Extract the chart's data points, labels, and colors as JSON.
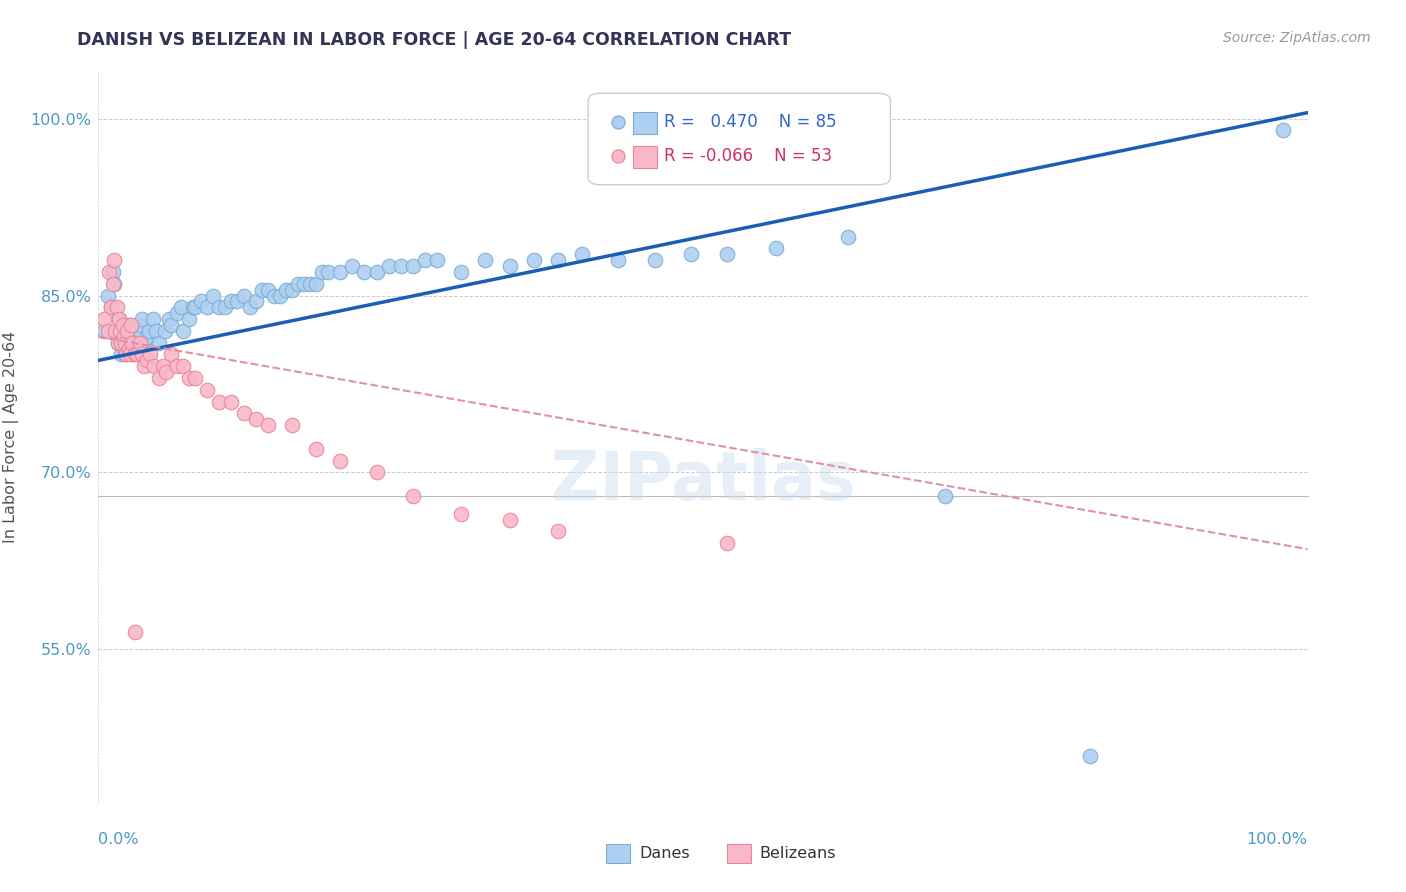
{
  "title": "DANISH VS BELIZEAN IN LABOR FORCE | AGE 20-64 CORRELATION CHART",
  "source": "Source: ZipAtlas.com",
  "ylabel": "In Labor Force | Age 20-64",
  "x_range": [
    0.0,
    1.0
  ],
  "y_range": [
    0.42,
    1.04
  ],
  "R_danes": 0.47,
  "N_danes": 85,
  "R_belizeans": -0.066,
  "N_belizeans": 53,
  "danes_color": "#aecff0",
  "danes_edge_color": "#7aadd4",
  "belizeans_color": "#f9b8c8",
  "belizeans_edge_color": "#e8849a",
  "trend_danes_color": "#1a5fb4",
  "trend_belizeans_color": "#e090a8",
  "watermark": "ZIPatlas",
  "y_ticks": [
    0.55,
    0.7,
    0.85,
    1.0
  ],
  "y_tick_labels": [
    "55.0%",
    "70.0%",
    "85.0%",
    "100.0%"
  ],
  "danes_trend": [
    0.795,
    1.005
  ],
  "belizeans_trend": [
    0.815,
    0.635
  ],
  "danes_x": [
    0.005,
    0.008,
    0.01,
    0.012,
    0.013,
    0.015,
    0.016,
    0.017,
    0.018,
    0.019,
    0.02,
    0.021,
    0.022,
    0.023,
    0.024,
    0.025,
    0.026,
    0.027,
    0.028,
    0.03,
    0.032,
    0.034,
    0.035,
    0.036,
    0.038,
    0.04,
    0.042,
    0.045,
    0.048,
    0.05,
    0.055,
    0.058,
    0.06,
    0.065,
    0.068,
    0.07,
    0.075,
    0.078,
    0.08,
    0.085,
    0.09,
    0.095,
    0.1,
    0.105,
    0.11,
    0.115,
    0.12,
    0.125,
    0.13,
    0.135,
    0.14,
    0.145,
    0.15,
    0.155,
    0.16,
    0.165,
    0.17,
    0.175,
    0.18,
    0.185,
    0.19,
    0.2,
    0.21,
    0.22,
    0.23,
    0.24,
    0.25,
    0.26,
    0.27,
    0.28,
    0.3,
    0.32,
    0.34,
    0.36,
    0.38,
    0.4,
    0.43,
    0.46,
    0.49,
    0.52,
    0.56,
    0.62,
    0.7,
    0.82,
    0.98
  ],
  "danes_y": [
    0.82,
    0.85,
    0.84,
    0.87,
    0.86,
    0.82,
    0.81,
    0.83,
    0.82,
    0.8,
    0.82,
    0.815,
    0.8,
    0.81,
    0.82,
    0.825,
    0.81,
    0.815,
    0.8,
    0.81,
    0.81,
    0.82,
    0.825,
    0.83,
    0.81,
    0.815,
    0.82,
    0.83,
    0.82,
    0.81,
    0.82,
    0.83,
    0.825,
    0.835,
    0.84,
    0.82,
    0.83,
    0.84,
    0.84,
    0.845,
    0.84,
    0.85,
    0.84,
    0.84,
    0.845,
    0.845,
    0.85,
    0.84,
    0.845,
    0.855,
    0.855,
    0.85,
    0.85,
    0.855,
    0.855,
    0.86,
    0.86,
    0.86,
    0.86,
    0.87,
    0.87,
    0.87,
    0.875,
    0.87,
    0.87,
    0.875,
    0.875,
    0.875,
    0.88,
    0.88,
    0.87,
    0.88,
    0.875,
    0.88,
    0.88,
    0.885,
    0.88,
    0.88,
    0.885,
    0.885,
    0.89,
    0.9,
    0.68,
    0.46,
    0.99
  ],
  "belizeans_x": [
    0.005,
    0.008,
    0.009,
    0.01,
    0.012,
    0.013,
    0.014,
    0.015,
    0.016,
    0.017,
    0.018,
    0.019,
    0.02,
    0.021,
    0.022,
    0.023,
    0.024,
    0.025,
    0.026,
    0.027,
    0.028,
    0.03,
    0.032,
    0.034,
    0.036,
    0.038,
    0.04,
    0.043,
    0.046,
    0.05,
    0.053,
    0.056,
    0.06,
    0.065,
    0.07,
    0.075,
    0.08,
    0.09,
    0.1,
    0.11,
    0.12,
    0.13,
    0.14,
    0.16,
    0.18,
    0.2,
    0.23,
    0.26,
    0.3,
    0.34,
    0.38,
    0.52,
    0.03
  ],
  "belizeans_y": [
    0.83,
    0.82,
    0.87,
    0.84,
    0.86,
    0.88,
    0.82,
    0.84,
    0.81,
    0.83,
    0.82,
    0.81,
    0.825,
    0.815,
    0.81,
    0.8,
    0.82,
    0.805,
    0.8,
    0.825,
    0.81,
    0.8,
    0.8,
    0.81,
    0.8,
    0.79,
    0.795,
    0.8,
    0.79,
    0.78,
    0.79,
    0.785,
    0.8,
    0.79,
    0.79,
    0.78,
    0.78,
    0.77,
    0.76,
    0.76,
    0.75,
    0.745,
    0.74,
    0.74,
    0.72,
    0.71,
    0.7,
    0.68,
    0.665,
    0.66,
    0.65,
    0.64,
    0.565
  ]
}
